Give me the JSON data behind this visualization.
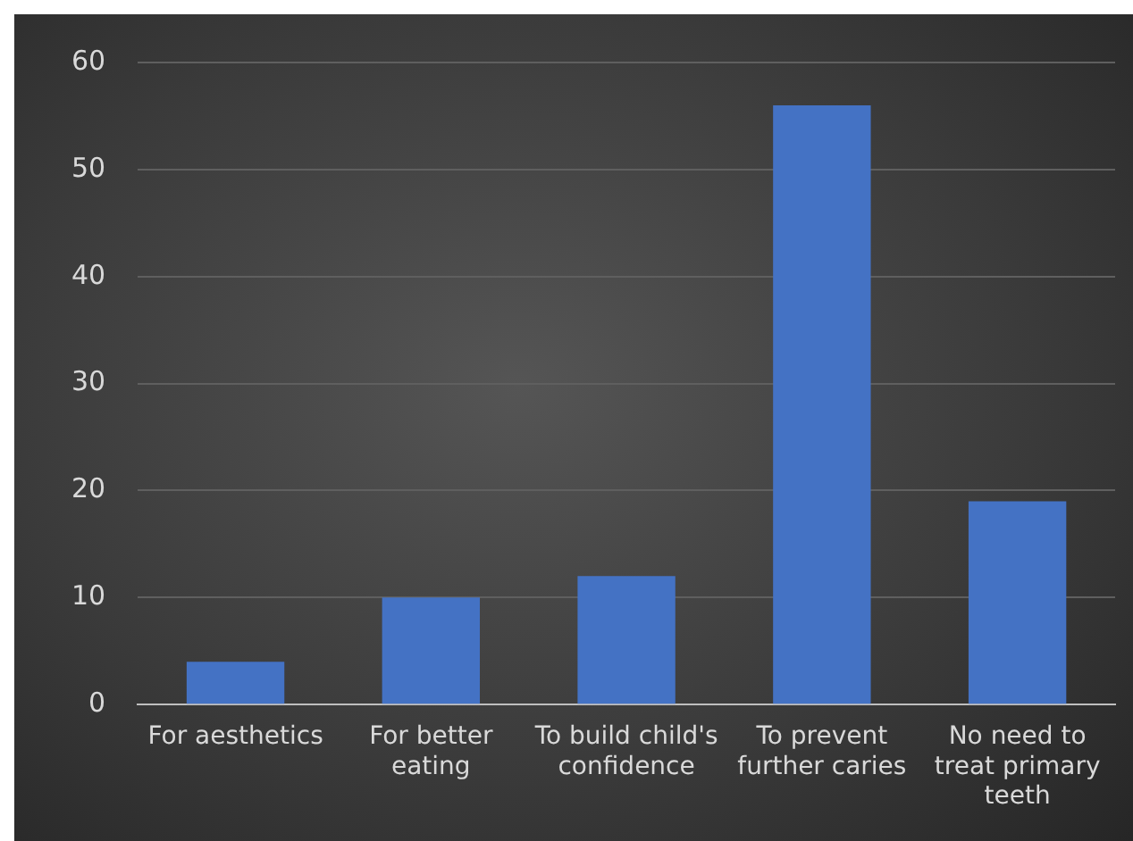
{
  "chart_data": {
    "type": "bar",
    "categories": [
      "For aesthetics",
      "For better eating",
      "To build child's confidence",
      "To prevent further caries",
      "No need to treat primary teeth"
    ],
    "values": [
      4,
      10,
      12,
      56,
      19
    ],
    "color": "#4472c4",
    "ylim": [
      0,
      60
    ],
    "yticks": [
      0,
      10,
      20,
      30,
      40,
      50,
      60
    ],
    "grid": "y"
  }
}
